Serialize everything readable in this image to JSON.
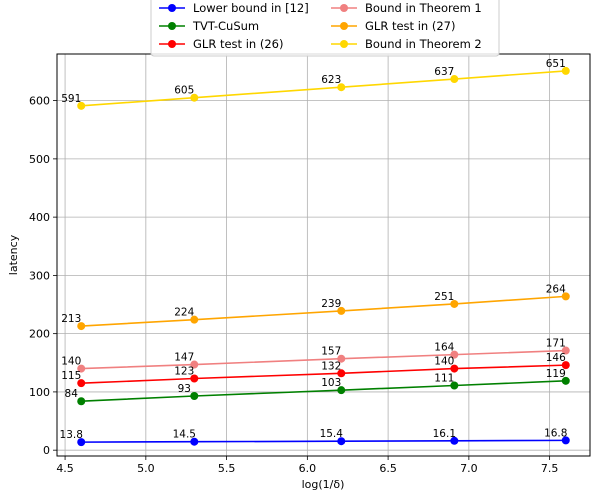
{
  "chart_data": {
    "type": "line",
    "title": "",
    "xlabel": "log(1/δ)",
    "ylabel": "latency",
    "xlim": [
      4.45,
      7.75
    ],
    "ylim": [
      -10,
      680
    ],
    "x_ticks": [
      "4.5",
      "5.0",
      "5.5",
      "6.0",
      "6.5",
      "7.0",
      "7.5"
    ],
    "y_ticks": [
      "0",
      "100",
      "200",
      "300",
      "400",
      "500",
      "600"
    ],
    "x": [
      4.6,
      5.3,
      6.21,
      6.91,
      7.6
    ],
    "grid": true,
    "legend_position": "top-center",
    "series": [
      {
        "name": "Lower bound in [12]",
        "color": "#0000ff",
        "values": [
          13.8,
          14.5,
          15.4,
          16.1,
          16.8
        ],
        "labels": [
          "13.8",
          "14.5",
          "15.4",
          "16.1",
          "16.8"
        ]
      },
      {
        "name": "TVT-CuSum",
        "color": "#008000",
        "values": [
          84,
          93,
          103,
          111,
          119
        ],
        "labels": [
          "84",
          "93",
          "103",
          "111",
          "119"
        ]
      },
      {
        "name": "GLR test in (26)",
        "color": "#ff0000",
        "values": [
          115,
          123,
          132,
          140,
          146
        ],
        "labels": [
          "115",
          "123",
          "132",
          "140",
          "146"
        ]
      },
      {
        "name": "Bound in Theorem 1",
        "color": "#f08080",
        "values": [
          140,
          147,
          157,
          164,
          171
        ],
        "labels": [
          "140",
          "147",
          "157",
          "164",
          "171"
        ]
      },
      {
        "name": "GLR test in (27)",
        "color": "#ffa500",
        "values": [
          213,
          224,
          239,
          251,
          264
        ],
        "labels": [
          "213",
          "224",
          "239",
          "251",
          "264"
        ]
      },
      {
        "name": "Bound in Theorem 2",
        "color": "#ffd700",
        "values": [
          591,
          605,
          623,
          637,
          651
        ],
        "labels": [
          "591",
          "605",
          "623",
          "637",
          "651"
        ]
      }
    ]
  }
}
